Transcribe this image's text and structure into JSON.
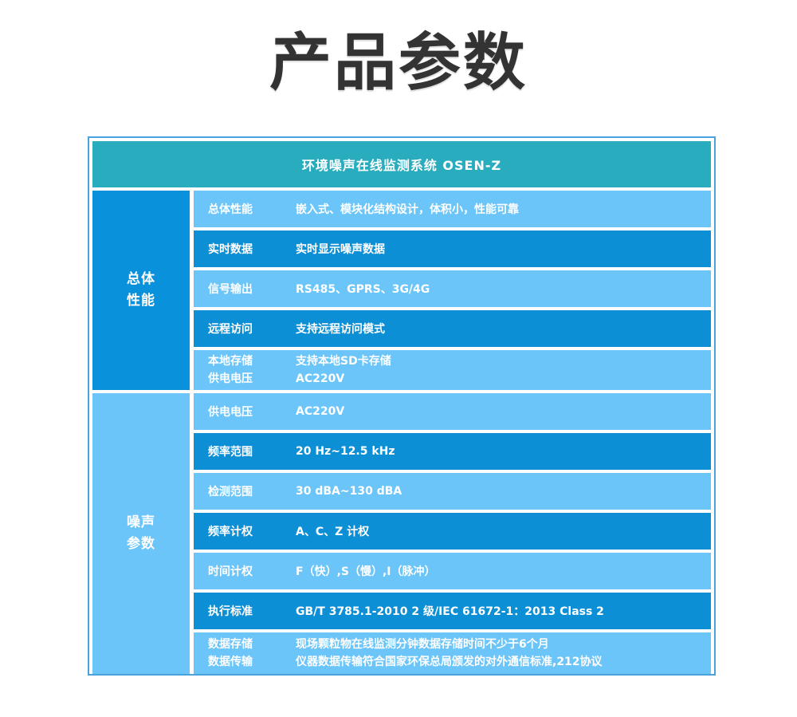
{
  "page": {
    "title": "产品参数"
  },
  "colors": {
    "header_teal": "#2aacbf",
    "dark_blue": "#0d8fd6",
    "sidebar_dark_blue": "#0991db",
    "light_blue": "#6cc5f9",
    "border_blue": "#4aa2dc",
    "title_text": "#333333",
    "table_text": "#ffffff"
  },
  "table": {
    "header": "环境噪声在线监测系统 OSEN-Z",
    "sections": [
      {
        "name": "总体性能",
        "name_lines": [
          "总体",
          "性能"
        ],
        "rows": [
          {
            "label": "总体性能",
            "value": "嵌入式、模块化结构设计，体积小，性能可靠"
          },
          {
            "label": "实时数据",
            "value": "实时显示噪声数据"
          },
          {
            "label": "信号输出",
            "value": "RS485、GPRS、3G/4G"
          },
          {
            "label": "远程访问",
            "value": "支持远程访问模式"
          },
          {
            "lines": [
              {
                "label": "本地存储",
                "value": "支持本地SD卡存储"
              },
              {
                "label": "供电电压",
                "value": "AC220V"
              }
            ]
          }
        ]
      },
      {
        "name": "噪声参数",
        "name_lines": [
          "噪声",
          "参数"
        ],
        "rows": [
          {
            "label": "供电电压",
            "value": "AC220V"
          },
          {
            "label": "频率范围",
            "value": "20 Hz~12.5 kHz"
          },
          {
            "label": "检测范围",
            "value": "30 dBA~130 dBA"
          },
          {
            "label": "频率计权",
            "value": "A、C、Z 计权"
          },
          {
            "label": "时间计权",
            "value": "F（快）,S（慢）,I（脉冲）"
          },
          {
            "label": "执行标准",
            "value": "GB/T 3785.1-2010 2 级/IEC 61672-1：2013 Class 2"
          },
          {
            "lines": [
              {
                "label": "数据存储",
                "value": "现场颗粒物在线监测分钟数据存储时间不少于6个月"
              },
              {
                "label": "数据传输",
                "value": "仪器数据传输符合国家环保总局颁发的对外通信标准,212协议"
              }
            ]
          }
        ]
      }
    ]
  }
}
